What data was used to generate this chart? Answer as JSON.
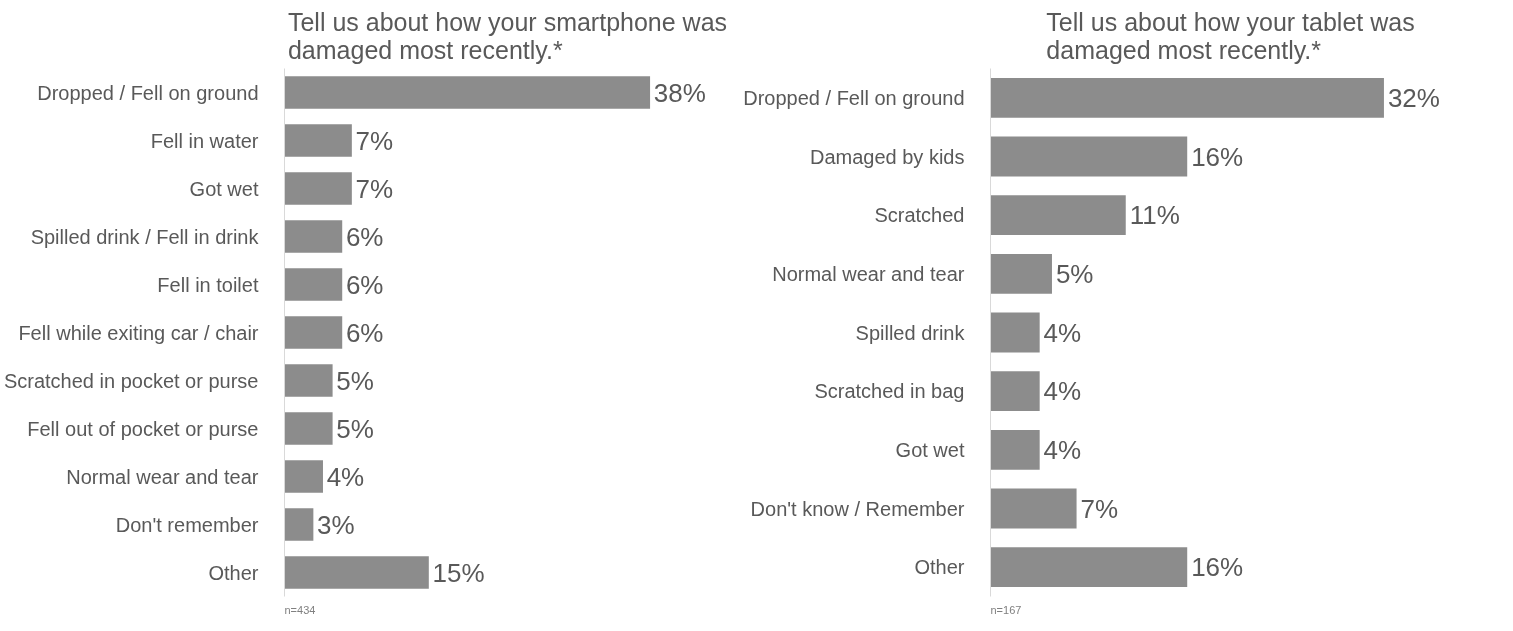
{
  "chart_data": [
    {
      "type": "bar",
      "orientation": "horizontal",
      "title": "Tell us about how your smartphone was damaged most recently.*",
      "categories": [
        "Dropped / Fell on ground",
        "Fell in water",
        "Got wet",
        "Spilled drink / Fell in drink",
        "Fell in toilet",
        "Fell while exiting car / chair",
        "Scratched in pocket or purse",
        "Fell out of pocket or purse",
        "Normal wear and tear",
        "Don't remember",
        "Other"
      ],
      "values": [
        38,
        7,
        7,
        6,
        6,
        6,
        5,
        5,
        4,
        3,
        15
      ],
      "value_labels": [
        "38%",
        "7%",
        "7%",
        "6%",
        "6%",
        "6%",
        "5%",
        "5%",
        "4%",
        "3%",
        "15%"
      ],
      "color": "#8c8c8c",
      "grid": false,
      "annotations": [
        "n=434"
      ]
    },
    {
      "type": "bar",
      "orientation": "horizontal",
      "title": "Tell us about how your tablet was damaged most recently.*",
      "categories": [
        "Dropped / Fell on ground",
        "Damaged by kids",
        "Scratched",
        "Normal wear and tear",
        "Spilled drink",
        "Scratched in bag",
        "Got wet",
        "Don't know / Remember",
        "Other"
      ],
      "values": [
        32,
        16,
        11,
        5,
        4,
        4,
        4,
        7,
        16
      ],
      "value_labels": [
        "32%",
        "16%",
        "11%",
        "5%",
        "4%",
        "4%",
        "4%",
        "7%",
        "16%"
      ],
      "color": "#8c8c8c",
      "grid": false,
      "annotations": [
        "n=167"
      ]
    }
  ]
}
